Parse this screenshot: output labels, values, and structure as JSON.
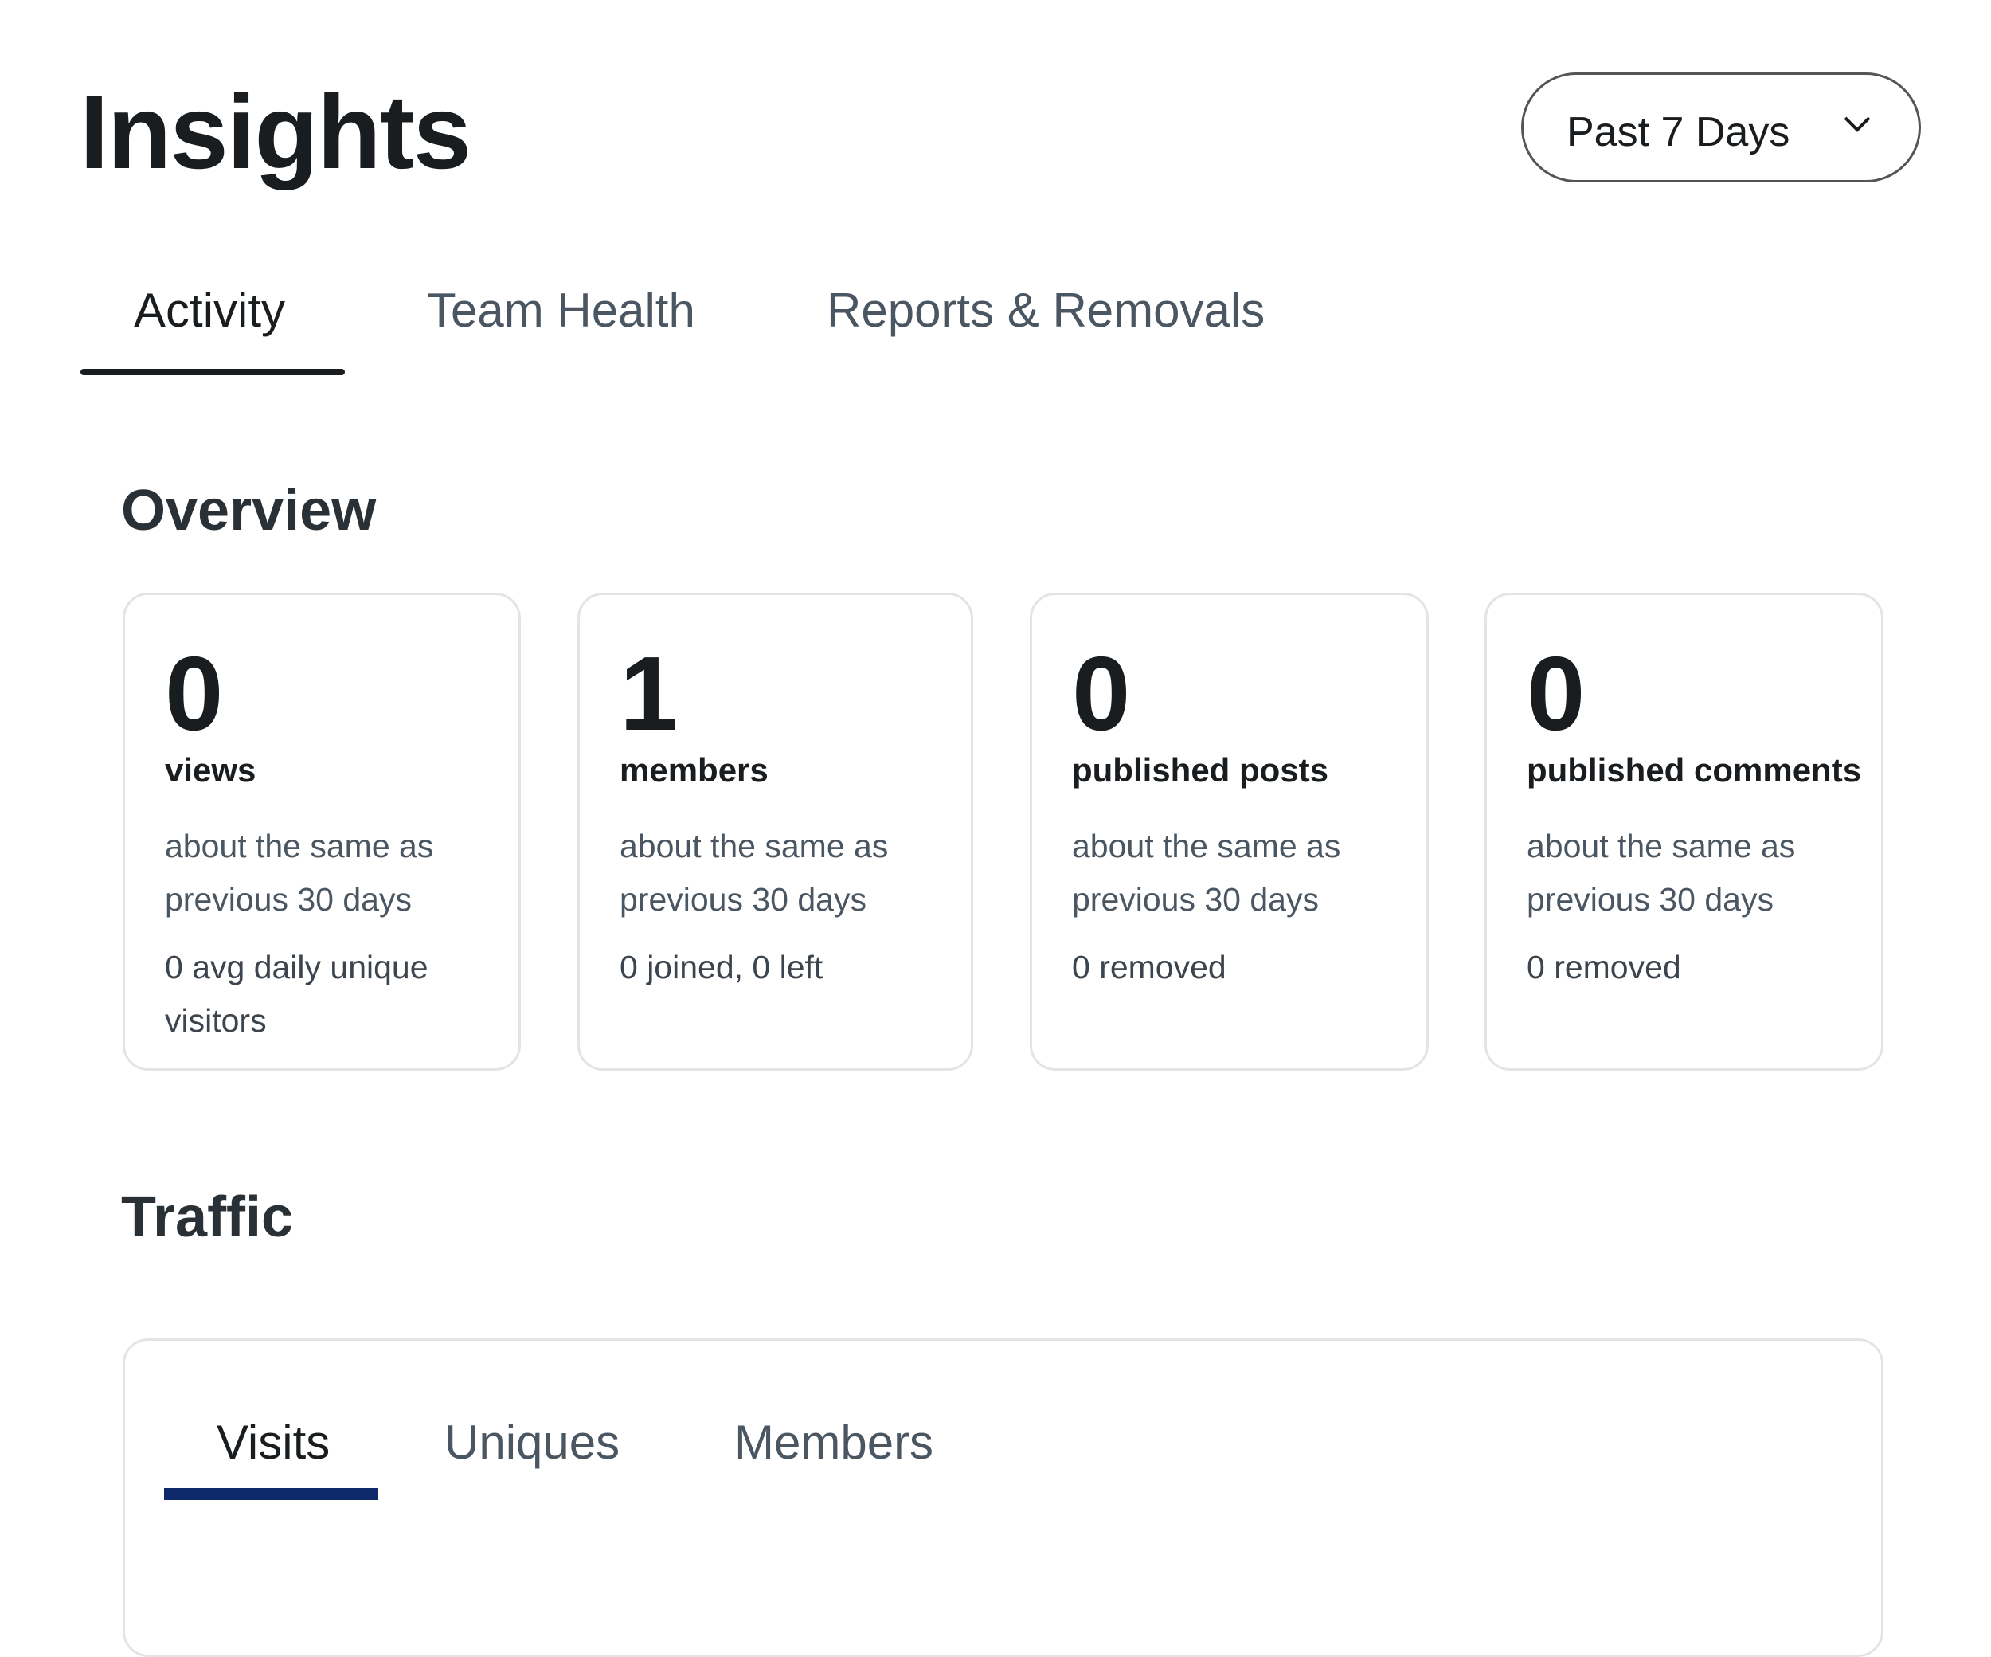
{
  "header": {
    "title": "Insights",
    "range": "Past 7 Days"
  },
  "tabs": [
    "Activity",
    "Team Health",
    "Reports & Removals"
  ],
  "overview": {
    "title": "Overview",
    "cards": [
      {
        "value": 0,
        "label": "views",
        "comparison": "about the same as previous 30 days",
        "detail": "0 avg daily unique visitors"
      },
      {
        "value": 1,
        "label": "members",
        "comparison": "about the same as previous 30 days",
        "detail": "0 joined, 0 left"
      },
      {
        "value": 0,
        "label": "published posts",
        "comparison": "about the same as previous 30 days",
        "detail": "0 removed"
      },
      {
        "value": 0,
        "label": "published comments",
        "comparison": "about the same as previous 30 days",
        "detail": "0 removed"
      }
    ]
  },
  "traffic": {
    "title": "Traffic",
    "tabs": [
      "Visits",
      "Uniques",
      "Members"
    ]
  }
}
